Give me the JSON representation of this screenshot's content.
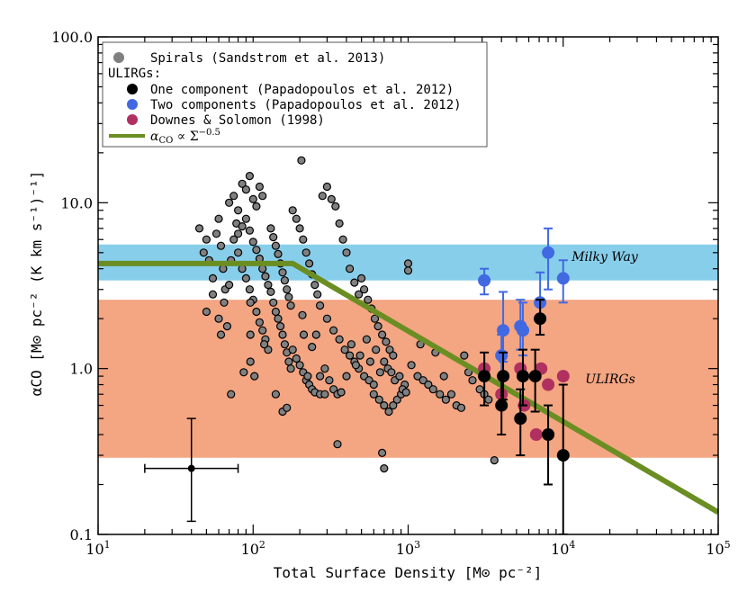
{
  "chart_data": {
    "type": "scatter",
    "xscale": "log",
    "yscale": "log",
    "xlim": [
      10,
      100000
    ],
    "ylim": [
      0.1,
      100
    ],
    "xlabel": "Total Surface Density [M⊙ pc⁻²]",
    "ylabel": "αCO [M⊙ pc⁻² (K km s⁻¹)⁻¹]",
    "x_ticks": [
      {
        "value": 10,
        "base": "10",
        "exp": "1"
      },
      {
        "value": 100,
        "base": "10",
        "exp": "2"
      },
      {
        "value": 1000,
        "base": "10",
        "exp": "3"
      },
      {
        "value": 10000,
        "base": "10",
        "exp": "4"
      },
      {
        "value": 100000,
        "base": "10",
        "exp": "5"
      }
    ],
    "y_ticks": [
      {
        "value": 0.1,
        "label": "0.1"
      },
      {
        "value": 1,
        "label": "1.0"
      },
      {
        "value": 10,
        "label": "10.0"
      },
      {
        "value": 100,
        "label": "100.0"
      }
    ],
    "bands": [
      {
        "name": "Milky Way",
        "label": "Milky Way",
        "y_range": [
          3.4,
          5.6
        ],
        "color": "#87ceeb"
      },
      {
        "name": "ULIRGs",
        "label": "ULIRGs",
        "y_range": [
          0.29,
          2.6
        ],
        "color": "#f4a582"
      }
    ],
    "legend": {
      "placement": "top-left",
      "entries": [
        {
          "label": "Spirals (Sandstrom et al. 2013)",
          "marker": "dot",
          "color": "#808080"
        },
        {
          "label": "ULIRGs:",
          "marker": "none"
        },
        {
          "label": "One component (Papadopoulos et al. 2012)",
          "marker": "dot",
          "color": "#000000"
        },
        {
          "label": "Two components (Papadopoulos et al. 2012)",
          "marker": "dot",
          "color": "#4169e1"
        },
        {
          "label": "Downes & Solomon (1998)",
          "marker": "dot",
          "color": "#b03060"
        },
        {
          "label_prefix": "α",
          "label_sub": "CO",
          "label_mid": " ∝ Σ",
          "label_sup": "−0.5",
          "marker": "line",
          "color": "#6b8e23"
        }
      ]
    },
    "series": [
      {
        "name": "Spirals (Sandstrom et al. 2013)",
        "color": "#808080",
        "points": [
          [
            45,
            7.0
          ],
          [
            48,
            5.0
          ],
          [
            50,
            6.0
          ],
          [
            52,
            4.5
          ],
          [
            55,
            3.5
          ],
          [
            58,
            6.5
          ],
          [
            60,
            8.0
          ],
          [
            62,
            5.5
          ],
          [
            64,
            4.0
          ],
          [
            66,
            3.0
          ],
          [
            50,
            2.2
          ],
          [
            55,
            2.8
          ],
          [
            60,
            2.0
          ],
          [
            62,
            1.6
          ],
          [
            65,
            2.5
          ],
          [
            68,
            1.8
          ],
          [
            70,
            3.2
          ],
          [
            72,
            4.5
          ],
          [
            75,
            6.0
          ],
          [
            78,
            7.5
          ],
          [
            70,
            10.0
          ],
          [
            75,
            11.0
          ],
          [
            80,
            9.0
          ],
          [
            85,
            13.0
          ],
          [
            90,
            12.0
          ],
          [
            95,
            14.5
          ],
          [
            100,
            10.5
          ],
          [
            105,
            9.5
          ],
          [
            110,
            12.5
          ],
          [
            115,
            11.0
          ],
          [
            80,
            5.0
          ],
          [
            85,
            4.0
          ],
          [
            90,
            3.5
          ],
          [
            95,
            3.0
          ],
          [
            100,
            2.6
          ],
          [
            105,
            2.2
          ],
          [
            110,
            1.9
          ],
          [
            115,
            1.7
          ],
          [
            120,
            1.5
          ],
          [
            125,
            1.3
          ],
          [
            80,
            6.5
          ],
          [
            85,
            7.2
          ],
          [
            90,
            8.0
          ],
          [
            95,
            6.8
          ],
          [
            100,
            5.8
          ],
          [
            105,
            5.2
          ],
          [
            110,
            4.6
          ],
          [
            115,
            4.0
          ],
          [
            120,
            3.6
          ],
          [
            125,
            3.2
          ],
          [
            130,
            2.9
          ],
          [
            135,
            2.5
          ],
          [
            140,
            2.2
          ],
          [
            145,
            2.0
          ],
          [
            150,
            1.8
          ],
          [
            155,
            1.6
          ],
          [
            160,
            1.4
          ],
          [
            165,
            1.25
          ],
          [
            170,
            1.1
          ],
          [
            175,
            1.0
          ],
          [
            130,
            7.0
          ],
          [
            135,
            6.2
          ],
          [
            140,
            5.5
          ],
          [
            145,
            4.9
          ],
          [
            150,
            4.3
          ],
          [
            155,
            3.8
          ],
          [
            160,
            3.4
          ],
          [
            165,
            3.0
          ],
          [
            170,
            2.7
          ],
          [
            175,
            2.4
          ],
          [
            180,
            9.0
          ],
          [
            190,
            8.0
          ],
          [
            200,
            7.0
          ],
          [
            210,
            6.0
          ],
          [
            220,
            5.0
          ],
          [
            230,
            4.3
          ],
          [
            240,
            3.7
          ],
          [
            250,
            3.2
          ],
          [
            260,
            2.8
          ],
          [
            270,
            2.4
          ],
          [
            180,
            1.3
          ],
          [
            190,
            1.15
          ],
          [
            200,
            1.05
          ],
          [
            210,
            0.95
          ],
          [
            220,
            0.85
          ],
          [
            230,
            0.8
          ],
          [
            240,
            0.75
          ],
          [
            250,
            0.72
          ],
          [
            270,
            0.7
          ],
          [
            290,
            0.7
          ],
          [
            280,
            11.0
          ],
          [
            300,
            12.5
          ],
          [
            320,
            10.5
          ],
          [
            340,
            9.5
          ],
          [
            360,
            7.5
          ],
          [
            380,
            6.0
          ],
          [
            400,
            5.0
          ],
          [
            420,
            4.0
          ],
          [
            450,
            3.3
          ],
          [
            480,
            2.8
          ],
          [
            300,
            2.0
          ],
          [
            330,
            1.7
          ],
          [
            360,
            1.5
          ],
          [
            390,
            1.3
          ],
          [
            420,
            1.2
          ],
          [
            450,
            1.1
          ],
          [
            480,
            1.0
          ],
          [
            520,
            0.9
          ],
          [
            560,
            0.85
          ],
          [
            600,
            0.8
          ],
          [
            500,
            3.5
          ],
          [
            520,
            3.0
          ],
          [
            550,
            2.6
          ],
          [
            580,
            2.3
          ],
          [
            610,
            2.0
          ],
          [
            640,
            1.8
          ],
          [
            680,
            1.6
          ],
          [
            720,
            1.45
          ],
          [
            760,
            1.3
          ],
          [
            800,
            1.2
          ],
          [
            600,
            0.7
          ],
          [
            650,
            0.65
          ],
          [
            700,
            0.6
          ],
          [
            750,
            0.55
          ],
          [
            800,
            0.6
          ],
          [
            850,
            0.65
          ],
          [
            900,
            0.7
          ],
          [
            950,
            0.8
          ],
          [
            1000,
            4.3
          ],
          [
            1000,
            3.9
          ],
          [
            96,
            2.5
          ],
          [
            96,
            1.6
          ],
          [
            96,
            1.1
          ],
          [
            72,
            0.7
          ],
          [
            87,
            0.95
          ],
          [
            102,
            0.9
          ],
          [
            118,
            1.4
          ],
          [
            140,
            0.7
          ],
          [
            155,
            0.55
          ],
          [
            165,
            0.58
          ],
          [
            205,
            18.0
          ],
          [
            208,
            2.1
          ],
          [
            212,
            1.6
          ],
          [
            225,
            0.9
          ],
          [
            240,
            1.35
          ],
          [
            255,
            1.6
          ],
          [
            270,
            0.9
          ],
          [
            290,
            1.0
          ],
          [
            310,
            0.85
          ],
          [
            330,
            0.75
          ],
          [
            350,
            0.7
          ],
          [
            370,
            0.72
          ],
          [
            400,
            0.9
          ],
          [
            430,
            1.4
          ],
          [
            460,
            1.05
          ],
          [
            490,
            1.2
          ],
          [
            540,
            1.5
          ],
          [
            570,
            1.1
          ],
          [
            620,
            1.3
          ],
          [
            660,
            0.95
          ],
          [
            700,
            1.1
          ],
          [
            740,
            1.0
          ],
          [
            780,
            0.95
          ],
          [
            820,
            0.85
          ],
          [
            880,
            0.9
          ],
          [
            920,
            0.75
          ],
          [
            970,
            0.72
          ],
          [
            1050,
            1.05
          ],
          [
            1150,
            0.9
          ],
          [
            1250,
            0.85
          ],
          [
            1350,
            0.8
          ],
          [
            1450,
            0.75
          ],
          [
            1600,
            0.7
          ],
          [
            1750,
            0.65
          ],
          [
            1900,
            0.7
          ],
          [
            2050,
            0.6
          ],
          [
            2200,
            0.58
          ],
          [
            2300,
            1.2
          ],
          [
            2450,
            0.95
          ],
          [
            2600,
            0.85
          ],
          [
            2900,
            0.75
          ],
          [
            3100,
            0.7
          ],
          [
            3300,
            0.65
          ],
          [
            350,
            0.35
          ],
          [
            680,
            0.31
          ],
          [
            700,
            0.25
          ],
          [
            3600,
            0.28
          ],
          [
            1200,
            1.4
          ],
          [
            1500,
            1.25
          ],
          [
            1700,
            0.9
          ]
        ]
      },
      {
        "name": "One component (Papadopoulos et al. 2012)",
        "color": "#000000",
        "points": [
          {
            "x": 3100,
            "y": 0.9,
            "ylo": 0.6,
            "yhi": 1.25
          },
          {
            "x": 4000,
            "y": 0.6,
            "ylo": 0.4,
            "yhi": 0.9
          },
          {
            "x": 4100,
            "y": 0.9,
            "ylo": 0.65,
            "yhi": 1.25
          },
          {
            "x": 5300,
            "y": 0.5,
            "ylo": 0.3,
            "yhi": 0.75
          },
          {
            "x": 5500,
            "y": 0.9,
            "ylo": 0.6,
            "yhi": 1.3
          },
          {
            "x": 6600,
            "y": 0.9,
            "ylo": 0.55,
            "yhi": 1.3
          },
          {
            "x": 7100,
            "y": 2.0,
            "ylo": 1.6,
            "yhi": 2.6
          },
          {
            "x": 8000,
            "y": 0.4,
            "ylo": 0.2,
            "yhi": 0.6
          },
          {
            "x": 10000,
            "y": 0.3,
            "ylo": 0.1,
            "yhi": 0.8
          }
        ]
      },
      {
        "name": "Two components (Papadopoulos et al. 2012)",
        "color": "#4169e1",
        "points": [
          {
            "x": 3100,
            "y": 3.4,
            "ylo": 2.8,
            "yhi": 4.0
          },
          {
            "x": 4000,
            "y": 1.2,
            "ylo": 0.9,
            "yhi": 1.6
          },
          {
            "x": 4100,
            "y": 1.7,
            "ylo": 1.1,
            "yhi": 2.9
          },
          {
            "x": 5300,
            "y": 1.8,
            "ylo": 1.3,
            "yhi": 2.6
          },
          {
            "x": 5500,
            "y": 1.7,
            "ylo": 1.2,
            "yhi": 2.5
          },
          {
            "x": 7100,
            "y": 2.5,
            "ylo": 1.6,
            "yhi": 3.8
          },
          {
            "x": 8000,
            "y": 5.0,
            "ylo": 3.0,
            "yhi": 7.0
          },
          {
            "x": 10000,
            "y": 3.5,
            "ylo": 2.5,
            "yhi": 4.5
          }
        ]
      },
      {
        "name": "Downes & Solomon (1998)",
        "color": "#b03060",
        "points": [
          [
            3100,
            1.0
          ],
          [
            4000,
            0.7
          ],
          [
            5300,
            1.0
          ],
          [
            5600,
            0.6
          ],
          [
            6700,
            0.4
          ],
          [
            7200,
            1.0
          ],
          [
            8000,
            0.8
          ],
          [
            10000,
            0.9
          ]
        ]
      }
    ],
    "fit_line": {
      "points": [
        [
          10,
          4.3
        ],
        [
          180,
          4.3
        ],
        [
          100000,
          0.136
        ]
      ],
      "color": "#6b8e23"
    },
    "representative_error": {
      "x": 40,
      "y": 0.25,
      "xlo": 20,
      "xhi": 80,
      "ylo": 0.12,
      "yhi": 0.5
    }
  }
}
